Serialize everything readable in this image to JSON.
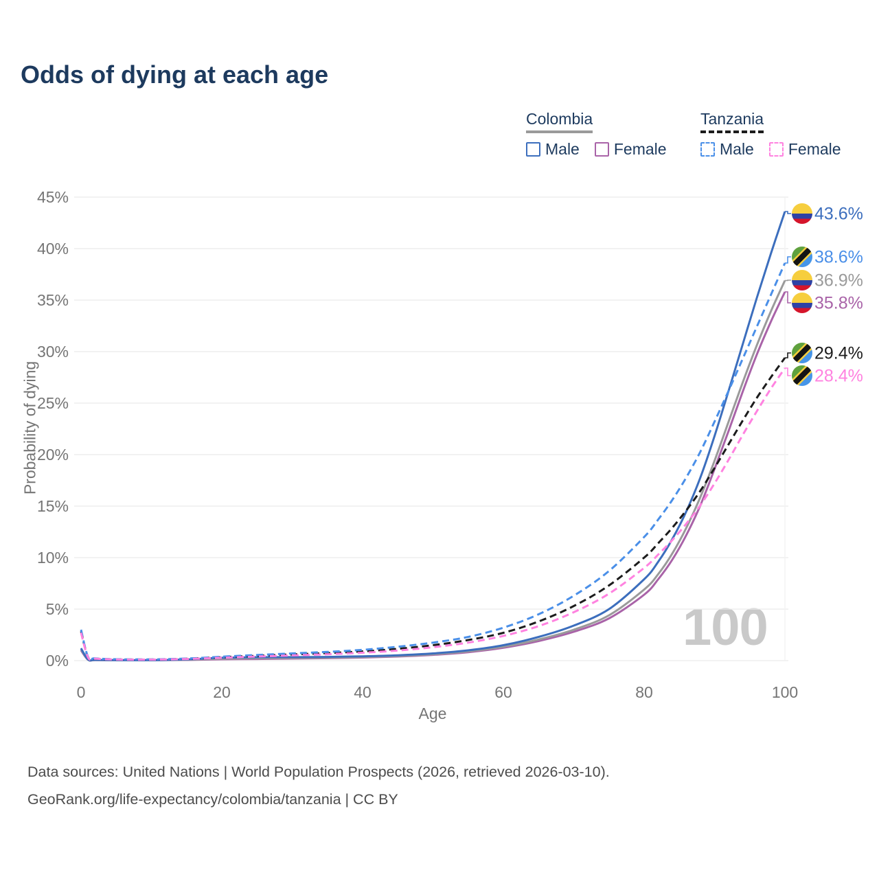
{
  "page": {
    "title": "Odds of dying at each age"
  },
  "legend": {
    "groups": [
      {
        "label": "Colombia",
        "items": [
          {
            "label": "Male"
          },
          {
            "label": "Female"
          }
        ]
      },
      {
        "label": "Tanzania",
        "items": [
          {
            "label": "Male"
          },
          {
            "label": "Female"
          }
        ]
      }
    ]
  },
  "footer": {
    "line1": "Data sources: United Nations | World Population Prospects (2026, retrieved 2026-03-10).",
    "line2": "GeoRank.org/life-expectancy/colombia/tanzania | CC BY"
  },
  "colors": {
    "title_text": "#1d3a5e",
    "legend_text": "#1d3a5e",
    "axis_ticks": "#757575",
    "gridline": "#ebebeb",
    "watermark": "#c9c9c9",
    "footer_text": "#4c4c4c",
    "colombia_male": "#3c6ebd",
    "colombia_combined": "#9a9a9a",
    "colombia_female": "#a963a8",
    "tanzania_male": "#4a8fe8",
    "tanzania_combined": "#1c1c1c",
    "tanzania_female": "#ff82e0"
  },
  "chart_data": {
    "type": "line",
    "title": "Odds of dying at each age",
    "xlabel": "Age",
    "ylabel": "Probability of dying",
    "xlim": [
      0,
      100
    ],
    "ylim": [
      0,
      45
    ],
    "x_ticks": [
      0,
      20,
      40,
      60,
      80,
      100
    ],
    "y_ticks": [
      0,
      5,
      10,
      15,
      20,
      25,
      30,
      35,
      40,
      45
    ],
    "y_tick_suffix": "%",
    "grid": "horizontal",
    "legend_position": "top-right",
    "watermark": "100",
    "ages": [
      0,
      1,
      2,
      5,
      10,
      15,
      20,
      25,
      30,
      35,
      40,
      45,
      50,
      55,
      60,
      65,
      70,
      75,
      80,
      82,
      84,
      86,
      88,
      90,
      92,
      94,
      96,
      98,
      100
    ],
    "series": [
      {
        "id": "colombia-female",
        "name": "Colombia Female",
        "flag": "colombia",
        "style": "solid",
        "color": "#a963a8",
        "end_label": "35.8%",
        "end_value": 35.8,
        "values": [
          1.0,
          0.08,
          0.055,
          0.04,
          0.04,
          0.07,
          0.13,
          0.16,
          0.2,
          0.24,
          0.3,
          0.4,
          0.56,
          0.82,
          1.25,
          1.9,
          2.8,
          4.1,
          6.4,
          7.9,
          9.8,
          12.2,
          15.1,
          18.6,
          22.3,
          26.1,
          29.7,
          32.9,
          35.8
        ]
      },
      {
        "id": "colombia-combined",
        "name": "Colombia Both Sexes",
        "flag": "colombia",
        "style": "solid",
        "color": "#9a9a9a",
        "end_label": "36.9%",
        "end_value": 36.9,
        "values": [
          1.1,
          0.09,
          0.06,
          0.045,
          0.045,
          0.09,
          0.19,
          0.23,
          0.26,
          0.29,
          0.35,
          0.45,
          0.62,
          0.9,
          1.35,
          2.05,
          3.0,
          4.4,
          6.9,
          8.4,
          10.4,
          12.9,
          15.9,
          19.4,
          23.2,
          27.0,
          30.6,
          33.9,
          36.9
        ]
      },
      {
        "id": "colombia-male",
        "name": "Colombia Male",
        "flag": "colombia",
        "style": "solid",
        "color": "#3c6ebd",
        "end_label": "43.6%",
        "end_value": 43.6,
        "values": [
          1.2,
          0.1,
          0.07,
          0.05,
          0.05,
          0.12,
          0.28,
          0.33,
          0.34,
          0.36,
          0.42,
          0.52,
          0.7,
          1.0,
          1.5,
          2.3,
          3.4,
          5.0,
          7.9,
          9.6,
          11.8,
          14.5,
          17.8,
          21.8,
          26.2,
          30.7,
          35.2,
          39.5,
          43.6
        ]
      },
      {
        "id": "tanzania-combined",
        "name": "Tanzania Both Sexes",
        "flag": "tanzania",
        "style": "dashed",
        "color": "#1c1c1c",
        "end_label": "29.4%",
        "end_value": 29.4,
        "values": [
          2.85,
          0.32,
          0.2,
          0.12,
          0.11,
          0.18,
          0.33,
          0.47,
          0.6,
          0.73,
          0.9,
          1.15,
          1.5,
          2.0,
          2.7,
          3.8,
          5.3,
          7.3,
          10.0,
          11.4,
          12.9,
          14.6,
          16.5,
          18.7,
          21.0,
          23.3,
          25.5,
          27.5,
          29.4
        ]
      },
      {
        "id": "tanzania-male",
        "name": "Tanzania Male",
        "flag": "tanzania",
        "style": "dashed",
        "color": "#4a8fe8",
        "end_label": "38.6%",
        "end_value": 38.6,
        "values": [
          3.0,
          0.35,
          0.22,
          0.13,
          0.12,
          0.2,
          0.38,
          0.55,
          0.7,
          0.85,
          1.05,
          1.35,
          1.75,
          2.3,
          3.2,
          4.5,
          6.3,
          8.7,
          12.0,
          13.7,
          15.6,
          17.8,
          20.3,
          23.2,
          26.2,
          29.3,
          32.4,
          35.5,
          38.6
        ]
      },
      {
        "id": "tanzania-female",
        "name": "Tanzania Female",
        "flag": "tanzania",
        "style": "dashed",
        "color": "#ff82e0",
        "end_label": "28.4%",
        "end_value": 28.4,
        "values": [
          2.7,
          0.3,
          0.19,
          0.11,
          0.1,
          0.16,
          0.28,
          0.4,
          0.51,
          0.62,
          0.77,
          0.98,
          1.3,
          1.75,
          2.4,
          3.35,
          4.7,
          6.5,
          9.0,
          10.3,
          11.7,
          13.3,
          15.1,
          17.2,
          19.5,
          21.9,
          24.2,
          26.4,
          28.4
        ]
      }
    ]
  }
}
